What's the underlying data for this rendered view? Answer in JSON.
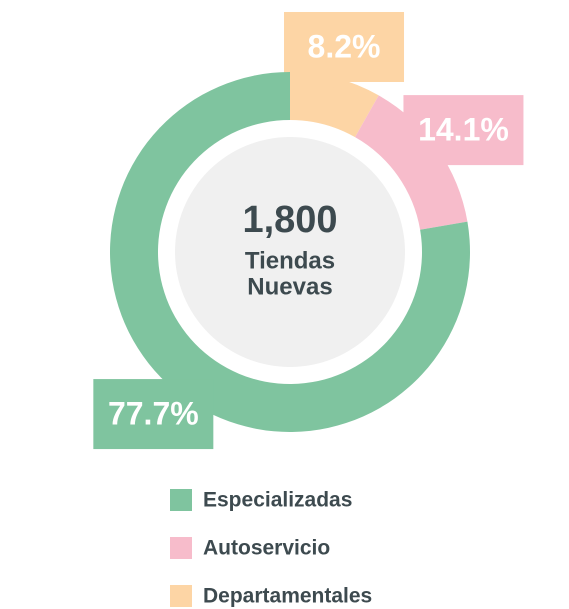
{
  "chart_data": {
    "type": "pie",
    "donut": true,
    "center_title": "1,800",
    "center_subtitle": [
      "Tiendas",
      "Nuevas"
    ],
    "categories": [
      "Especializadas",
      "Autoservicio",
      "Departamentales"
    ],
    "values": [
      77.7,
      14.1,
      8.2
    ],
    "value_labels": [
      "77.7%",
      "14.1%",
      "8.2%"
    ],
    "colors": [
      "#7fc49f",
      "#f7bccb",
      "#fdd5a5"
    ],
    "legend": "bottom"
  }
}
